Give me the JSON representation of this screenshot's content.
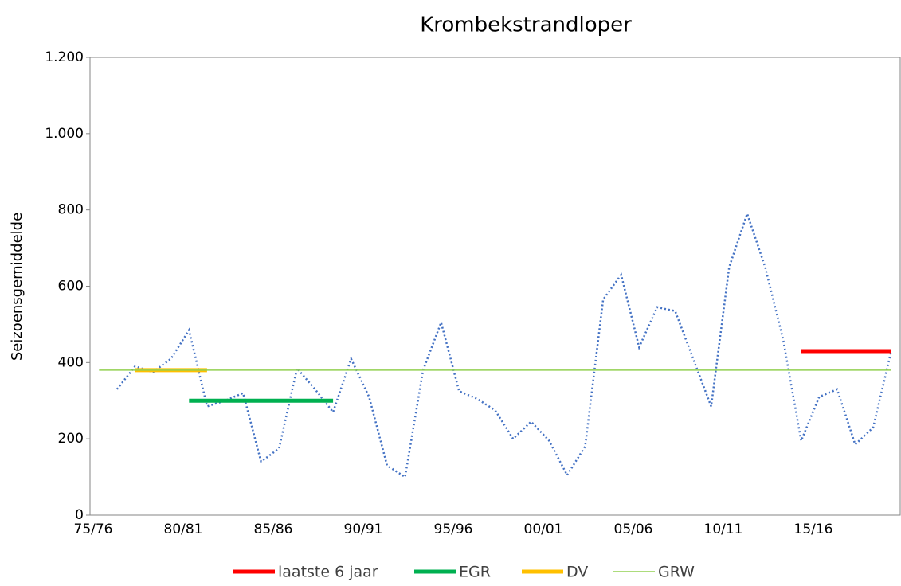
{
  "chart_data": {
    "type": "line",
    "title": "Krombekstrandloper",
    "y_label": "Seizoensgemiddelde",
    "categories": [
      "75/76",
      null,
      null,
      null,
      null,
      "80/81",
      null,
      null,
      null,
      null,
      "85/86",
      null,
      null,
      null,
      null,
      "90/91",
      null,
      null,
      null,
      null,
      "95/96",
      null,
      null,
      null,
      null,
      "00/01",
      null,
      null,
      null,
      null,
      "05/06",
      null,
      null,
      null,
      null,
      "10/11",
      null,
      null,
      null,
      null,
      "15/16",
      null,
      null,
      null,
      null
    ],
    "ylim": [
      0,
      1200
    ],
    "yticks": [
      0,
      200,
      400,
      600,
      800,
      {
        "value": 1000,
        "label": "1.000"
      },
      {
        "value": 1200,
        "label": "1.200"
      }
    ],
    "series": [
      {
        "color": "#4472c4",
        "style": "dotted",
        "values": [
          null,
          330,
          390,
          375,
          410,
          485,
          285,
          300,
          320,
          140,
          175,
          385,
          330,
          270,
          410,
          310,
          130,
          100,
          380,
          505,
          325,
          305,
          275,
          200,
          245,
          195,
          105,
          180,
          565,
          630,
          440,
          545,
          535,
          410,
          285,
          650,
          790,
          650,
          460,
          195,
          310,
          330,
          185,
          230,
          430
        ]
      },
      {
        "name": "laatste 6 jaar",
        "color": "#ff0000",
        "style": "thick",
        "values": [
          null,
          null,
          null,
          null,
          null,
          null,
          null,
          null,
          null,
          null,
          null,
          null,
          null,
          null,
          null,
          null,
          null,
          null,
          null,
          null,
          null,
          null,
          null,
          null,
          null,
          null,
          null,
          null,
          null,
          null,
          null,
          null,
          null,
          null,
          null,
          null,
          null,
          null,
          null,
          430,
          430,
          430,
          430,
          430,
          430
        ]
      },
      {
        "name": "EGR",
        "color": "#00b050",
        "style": "thick",
        "values": [
          null,
          null,
          null,
          null,
          null,
          300,
          300,
          300,
          300,
          300,
          300,
          300,
          300,
          300,
          null,
          null,
          null,
          null,
          null,
          null,
          null,
          null,
          null,
          null,
          null,
          null,
          null,
          null,
          null,
          null,
          null,
          null,
          null,
          null,
          null,
          null,
          null,
          null,
          null,
          null,
          null,
          null,
          null,
          null,
          null
        ]
      },
      {
        "name": "DV",
        "color": "#ffc000",
        "style": "thick",
        "values": [
          null,
          null,
          380,
          380,
          380,
          380,
          380,
          null,
          null,
          null,
          null,
          null,
          null,
          null,
          null,
          null,
          null,
          null,
          null,
          null,
          null,
          null,
          null,
          null,
          null,
          null,
          null,
          null,
          null,
          null,
          null,
          null,
          null,
          null,
          null,
          null,
          null,
          null,
          null,
          null,
          null,
          null,
          null,
          null,
          null
        ]
      },
      {
        "name": "GRW",
        "color": "#92d050",
        "style": "thin",
        "values": [
          380,
          380,
          380,
          380,
          380,
          380,
          380,
          380,
          380,
          380,
          380,
          380,
          380,
          380,
          380,
          380,
          380,
          380,
          380,
          380,
          380,
          380,
          380,
          380,
          380,
          380,
          380,
          380,
          380,
          380,
          380,
          380,
          380,
          380,
          380,
          380,
          380,
          380,
          380,
          380,
          380,
          380,
          380,
          380,
          380
        ]
      }
    ]
  }
}
